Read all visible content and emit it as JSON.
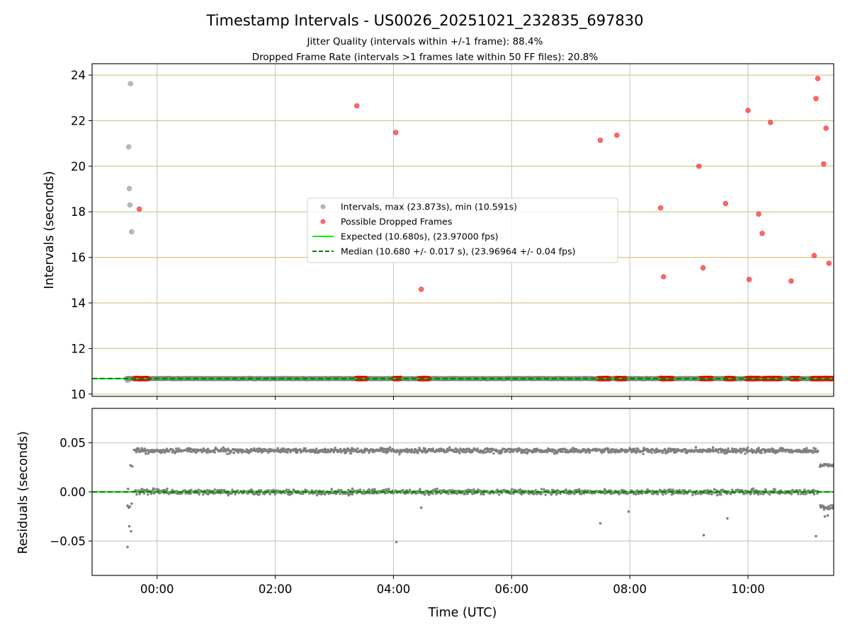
{
  "figure": {
    "title": "Timestamp Intervals - US0026_20251021_232835_697830",
    "subtitle_1": "Jitter Quality (intervals within +/-1 frame): 88.4%",
    "subtitle_2": "Dropped Frame Rate (intervals >1 frames late within 50 FF files): 20.8%"
  },
  "chart_data": [
    {
      "type": "scatter",
      "name": "intervals",
      "ylabel": "Intervals (seconds)",
      "x_unit": "hours UTC (time of day; values below 0 are before midnight on the previous day)",
      "xlim": [
        -1.1,
        11.45
      ],
      "ylim": [
        9.9,
        24.5
      ],
      "yticks": [
        10,
        12,
        14,
        16,
        18,
        20,
        22,
        24
      ],
      "ytick_labels": [
        "10",
        "12",
        "14",
        "16",
        "18",
        "20",
        "22",
        "24"
      ],
      "grid": "vertical lines at x ticks, horizontal lines at y ticks",
      "legend": {
        "placement": "center",
        "entries": [
          "Intervals, max (23.873s), min (10.591s)",
          "Possible Dropped Frames",
          "Expected (10.680s), (23.97000 fps)",
          "Median (10.680 +/- 0.017 s), (23.96964 +/- 0.04 fps)"
        ]
      },
      "series": [
        {
          "name": "Intervals, max (23.873s), min (10.591s)",
          "color": "#808080",
          "baseline_band": {
            "x_range": [
              -0.52,
              11.45
            ],
            "y": 10.68
          },
          "points": [
            {
              "x": -0.45,
              "y": 23.62
            },
            {
              "x": -0.48,
              "y": 20.85
            },
            {
              "x": -0.47,
              "y": 19.02
            },
            {
              "x": -0.46,
              "y": 18.3
            },
            {
              "x": -0.43,
              "y": 17.12
            },
            {
              "x": -0.5,
              "y": 10.6
            }
          ]
        },
        {
          "name": "Possible Dropped Frames",
          "color": "#ff0000",
          "points": [
            {
              "x": -0.3,
              "y": 18.12
            },
            {
              "x": 3.38,
              "y": 22.65
            },
            {
              "x": 4.04,
              "y": 21.48
            },
            {
              "x": 4.47,
              "y": 14.6
            },
            {
              "x": 7.5,
              "y": 21.14
            },
            {
              "x": 7.78,
              "y": 21.36
            },
            {
              "x": 8.52,
              "y": 18.17
            },
            {
              "x": 8.57,
              "y": 15.15
            },
            {
              "x": 9.17,
              "y": 20.0
            },
            {
              "x": 9.24,
              "y": 15.54
            },
            {
              "x": 9.62,
              "y": 18.36
            },
            {
              "x": 10.0,
              "y": 22.45
            },
            {
              "x": 10.02,
              "y": 15.03
            },
            {
              "x": 10.18,
              "y": 17.9
            },
            {
              "x": 10.24,
              "y": 17.05
            },
            {
              "x": 10.38,
              "y": 21.92
            },
            {
              "x": 10.73,
              "y": 14.96
            },
            {
              "x": 11.12,
              "y": 16.08
            },
            {
              "x": 11.15,
              "y": 22.97
            },
            {
              "x": 11.18,
              "y": 23.85
            },
            {
              "x": 11.28,
              "y": 20.1
            },
            {
              "x": 11.32,
              "y": 21.67
            },
            {
              "x": 11.37,
              "y": 15.74
            }
          ],
          "clusters_near_expected": [
            {
              "x0": -0.38,
              "x1": -0.14
            },
            {
              "x0": 3.37,
              "x1": 3.55
            },
            {
              "x0": 4.01,
              "x1": 4.12
            },
            {
              "x0": 4.43,
              "x1": 4.6
            },
            {
              "x0": 7.47,
              "x1": 7.66
            },
            {
              "x0": 7.77,
              "x1": 7.93
            },
            {
              "x0": 8.52,
              "x1": 8.73
            },
            {
              "x0": 9.2,
              "x1": 9.4
            },
            {
              "x0": 9.62,
              "x1": 9.77
            },
            {
              "x0": 9.97,
              "x1": 10.2
            },
            {
              "x0": 10.26,
              "x1": 10.55
            },
            {
              "x0": 10.73,
              "x1": 10.87
            },
            {
              "x0": 11.08,
              "x1": 11.45
            }
          ]
        },
        {
          "name": "Expected (10.680s), (23.97000 fps)",
          "kind": "hline",
          "y": 10.68,
          "color": "#00ee00"
        },
        {
          "name": "Median (10.680 +/- 0.017 s), (23.96964 +/- 0.04 fps)",
          "kind": "hline",
          "y": 10.68,
          "color": "#008000",
          "style": "dashed"
        }
      ]
    },
    {
      "type": "scatter",
      "name": "residuals",
      "xlabel": "Time (UTC)",
      "ylabel": "Residuals (seconds)",
      "xlim": [
        -1.1,
        11.45
      ],
      "ylim": [
        -0.085,
        0.085
      ],
      "xticks": [
        0,
        2,
        4,
        6,
        8,
        10
      ],
      "xtick_labels": [
        "00:00",
        "02:00",
        "04:00",
        "06:00",
        "08:00",
        "10:00"
      ],
      "yticks": [
        0.05,
        0.0,
        -0.05
      ],
      "ytick_labels": [
        "0.05",
        "0.00",
        "−0.05"
      ],
      "grid": "on",
      "series": [
        {
          "name": "residuals",
          "color": "#808080",
          "bands": [
            {
              "y": 0.042,
              "x_range": [
                -0.38,
                11.2
              ],
              "spread": 0.003
            },
            {
              "y": 0.0,
              "x_range": [
                -0.38,
                11.2
              ],
              "spread": 0.003
            },
            {
              "y": 0.027,
              "x_range": [
                11.22,
                11.45
              ],
              "spread": 0.002
            },
            {
              "y": -0.016,
              "x_range": [
                11.22,
                11.45
              ],
              "spread": 0.003
            }
          ],
          "points": [
            {
              "x": -0.5,
              "y": -0.056
            },
            {
              "x": -0.47,
              "y": -0.035
            },
            {
              "x": -0.44,
              "y": -0.04
            },
            {
              "x": -0.5,
              "y": -0.014
            },
            {
              "x": -0.48,
              "y": -0.016
            },
            {
              "x": -0.46,
              "y": -0.015
            },
            {
              "x": -0.43,
              "y": -0.012
            },
            {
              "x": -0.45,
              "y": 0.027
            },
            {
              "x": -0.42,
              "y": 0.026
            },
            {
              "x": -0.49,
              "y": 0.003
            },
            {
              "x": 4.05,
              "y": -0.051
            },
            {
              "x": 4.47,
              "y": -0.016
            },
            {
              "x": 7.5,
              "y": -0.032
            },
            {
              "x": 7.98,
              "y": -0.02
            },
            {
              "x": 9.25,
              "y": -0.044
            },
            {
              "x": 9.65,
              "y": -0.027
            },
            {
              "x": 11.15,
              "y": -0.045
            },
            {
              "x": 11.3,
              "y": -0.025
            },
            {
              "x": 11.35,
              "y": -0.024
            }
          ]
        },
        {
          "name": "expected",
          "kind": "hline",
          "y": 0.0,
          "color": "#00ee00"
        },
        {
          "name": "median",
          "kind": "hline",
          "y": 0.0,
          "color": "#008000",
          "style": "dashed"
        }
      ]
    }
  ]
}
